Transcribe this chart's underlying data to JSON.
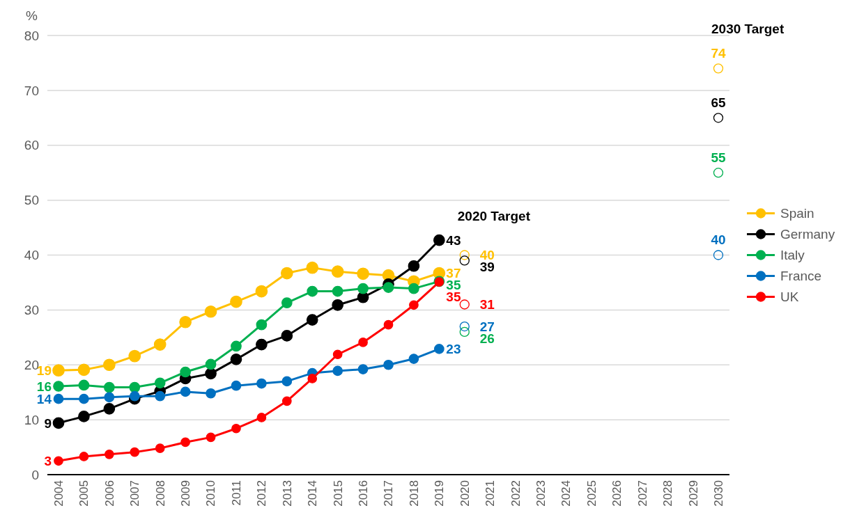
{
  "chart_data": {
    "type": "line",
    "ylabel": "%",
    "categories": [
      "2004",
      "2005",
      "2006",
      "2007",
      "2008",
      "2009",
      "2010",
      "2011",
      "2012",
      "2013",
      "2014",
      "2015",
      "2016",
      "2017",
      "2018",
      "2019",
      "2020",
      "2021",
      "2022",
      "2023",
      "2024",
      "2025",
      "2026",
      "2027",
      "2028",
      "2029",
      "2030"
    ],
    "ylim": [
      0,
      80
    ],
    "yticks": [
      0,
      10,
      20,
      30,
      40,
      50,
      60,
      70,
      80
    ],
    "grid": "y",
    "legend": "right",
    "marker": "circle",
    "line_style": "solid",
    "annotations": [
      "2020 Target",
      "2030 Target"
    ],
    "series": [
      {
        "name": "Spain",
        "color": "#ffc000",
        "values": [
          19.0,
          19.1,
          20.0,
          21.6,
          23.7,
          27.8,
          29.7,
          31.5,
          33.4,
          36.7,
          37.7,
          37.0,
          36.6,
          36.3,
          35.2,
          36.7,
          null,
          null,
          null,
          null,
          null,
          null,
          null,
          null,
          null,
          null,
          null
        ],
        "value_labels": [
          "19",
          null,
          null,
          null,
          null,
          null,
          null,
          null,
          null,
          null,
          null,
          null,
          null,
          null,
          null,
          "37",
          null,
          null,
          null,
          null,
          null,
          null,
          null,
          null,
          null,
          null,
          null
        ]
      },
      {
        "name": "Germany",
        "color": "#000000",
        "values": [
          9.4,
          10.6,
          12.0,
          13.8,
          15.2,
          17.5,
          18.4,
          21.0,
          23.7,
          25.3,
          28.2,
          30.9,
          32.3,
          34.7,
          38.0,
          42.7,
          null,
          null,
          null,
          null,
          null,
          null,
          null,
          null,
          null,
          null,
          null
        ],
        "value_labels": [
          "9",
          null,
          null,
          null,
          null,
          null,
          null,
          null,
          null,
          null,
          null,
          null,
          null,
          null,
          null,
          "43",
          null,
          null,
          null,
          null,
          null,
          null,
          null,
          null,
          null,
          null,
          null
        ]
      },
      {
        "name": "Italy",
        "color": "#00b050",
        "values": [
          16.1,
          16.3,
          15.9,
          15.9,
          16.7,
          18.7,
          20.1,
          23.4,
          27.3,
          31.3,
          33.4,
          33.4,
          33.9,
          34.1,
          33.9,
          35.2,
          null,
          null,
          null,
          null,
          null,
          null,
          null,
          null,
          null,
          null,
          null
        ],
        "value_labels": [
          "16",
          null,
          null,
          null,
          null,
          null,
          null,
          null,
          null,
          null,
          null,
          null,
          null,
          null,
          null,
          "35",
          null,
          null,
          null,
          null,
          null,
          null,
          null,
          null,
          null,
          null,
          null
        ]
      },
      {
        "name": "France",
        "color": "#0070c0",
        "values": [
          13.8,
          13.8,
          14.1,
          14.3,
          14.3,
          15.1,
          14.8,
          16.2,
          16.6,
          17.0,
          18.5,
          18.9,
          19.2,
          20.0,
          21.1,
          22.9,
          null,
          null,
          null,
          null,
          null,
          null,
          null,
          null,
          null,
          null,
          null
        ],
        "value_labels": [
          "14",
          null,
          null,
          null,
          null,
          null,
          null,
          null,
          null,
          null,
          null,
          null,
          null,
          null,
          null,
          "23",
          null,
          null,
          null,
          null,
          null,
          null,
          null,
          null,
          null,
          null,
          null
        ]
      },
      {
        "name": "UK",
        "color": "#ff0000",
        "values": [
          2.5,
          3.3,
          3.7,
          4.1,
          4.8,
          5.9,
          6.8,
          8.4,
          10.4,
          13.4,
          17.5,
          21.9,
          24.1,
          27.3,
          30.9,
          35.1,
          null,
          null,
          null,
          null,
          null,
          null,
          null,
          null,
          null,
          null,
          null
        ],
        "value_labels": [
          "3",
          null,
          null,
          null,
          null,
          null,
          null,
          null,
          null,
          null,
          null,
          null,
          null,
          null,
          null,
          "35",
          null,
          null,
          null,
          null,
          null,
          null,
          null,
          null,
          null,
          null,
          null
        ]
      },
      {
        "type": "scatter",
        "color": "#ffc000",
        "values": [
          null,
          null,
          null,
          null,
          null,
          null,
          null,
          null,
          null,
          null,
          null,
          null,
          null,
          null,
          null,
          null,
          40,
          null,
          null,
          null,
          null,
          null,
          null,
          null,
          null,
          null,
          74
        ],
        "data_labels": true
      },
      {
        "type": "scatter",
        "color": "#000000",
        "values": [
          null,
          null,
          null,
          null,
          null,
          null,
          null,
          null,
          null,
          null,
          null,
          null,
          null,
          null,
          null,
          null,
          39,
          null,
          null,
          null,
          null,
          null,
          null,
          null,
          null,
          null,
          65
        ],
        "data_labels": true
      },
      {
        "type": "scatter",
        "color": "#00b050",
        "values": [
          null,
          null,
          null,
          null,
          null,
          null,
          null,
          null,
          null,
          null,
          null,
          null,
          null,
          null,
          null,
          null,
          26,
          null,
          null,
          null,
          null,
          null,
          null,
          null,
          null,
          null,
          55
        ],
        "data_labels": true
      },
      {
        "type": "scatter",
        "color": "#0070c0",
        "values": [
          null,
          null,
          null,
          null,
          null,
          null,
          null,
          null,
          null,
          null,
          null,
          null,
          null,
          null,
          null,
          null,
          27,
          null,
          null,
          null,
          null,
          null,
          null,
          null,
          null,
          null,
          40
        ],
        "data_labels": true
      },
      {
        "type": "scatter",
        "color": "#ff0000",
        "values": [
          null,
          null,
          null,
          null,
          null,
          null,
          null,
          null,
          null,
          null,
          null,
          null,
          null,
          null,
          null,
          null,
          31,
          null,
          null,
          null,
          null,
          null,
          null,
          null,
          null,
          null,
          null
        ],
        "data_labels": true
      }
    ]
  }
}
